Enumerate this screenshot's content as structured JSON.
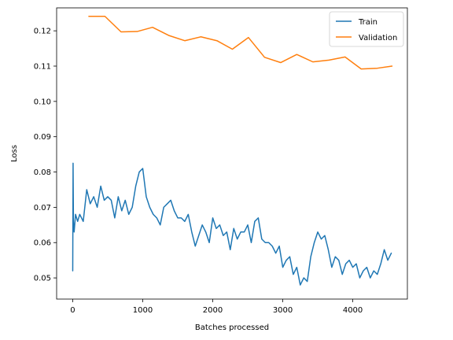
{
  "chart_data": {
    "type": "line",
    "title": "",
    "xlabel": "Batches processed",
    "ylabel": "Loss",
    "xlim": [
      -230,
      4780
    ],
    "ylim": [
      0.044,
      0.1265
    ],
    "xticks": [
      0,
      1000,
      2000,
      3000,
      4000
    ],
    "yticks": [
      0.05,
      0.06,
      0.07,
      0.08,
      0.09,
      0.1,
      0.11,
      0.12
    ],
    "ytick_labels": [
      "0.05",
      "0.06",
      "0.07",
      "0.08",
      "0.09",
      "0.10",
      "0.11",
      "0.12"
    ],
    "grid": false,
    "legend": {
      "placement": "top-right"
    },
    "series": [
      {
        "name": "Train",
        "color": "#1f77b4",
        "x": [
          0,
          5,
          10,
          20,
          40,
          70,
          100,
          150,
          200,
          250,
          300,
          350,
          400,
          450,
          500,
          550,
          600,
          650,
          700,
          750,
          800,
          850,
          900,
          950,
          1000,
          1050,
          1100,
          1150,
          1200,
          1250,
          1300,
          1350,
          1400,
          1450,
          1500,
          1550,
          1600,
          1650,
          1700,
          1750,
          1800,
          1850,
          1900,
          1950,
          2000,
          2050,
          2100,
          2150,
          2200,
          2250,
          2300,
          2350,
          2400,
          2450,
          2500,
          2550,
          2600,
          2650,
          2700,
          2750,
          2800,
          2850,
          2900,
          2950,
          3000,
          3050,
          3100,
          3150,
          3200,
          3250,
          3300,
          3350,
          3400,
          3450,
          3500,
          3550,
          3600,
          3650,
          3700,
          3750,
          3800,
          3850,
          3900,
          3950,
          4000,
          4050,
          4100,
          4150,
          4200,
          4250,
          4300,
          4350,
          4400,
          4450,
          4500,
          4550
        ],
        "values": [
          0.052,
          0.0825,
          0.066,
          0.063,
          0.068,
          0.066,
          0.068,
          0.066,
          0.075,
          0.071,
          0.073,
          0.07,
          0.076,
          0.072,
          0.073,
          0.072,
          0.067,
          0.073,
          0.069,
          0.072,
          0.068,
          0.07,
          0.076,
          0.08,
          0.081,
          0.073,
          0.07,
          0.068,
          0.067,
          0.065,
          0.07,
          0.071,
          0.072,
          0.069,
          0.067,
          0.067,
          0.066,
          0.068,
          0.063,
          0.059,
          0.062,
          0.065,
          0.063,
          0.06,
          0.067,
          0.064,
          0.065,
          0.062,
          0.063,
          0.058,
          0.064,
          0.061,
          0.063,
          0.063,
          0.065,
          0.06,
          0.066,
          0.067,
          0.061,
          0.06,
          0.06,
          0.059,
          0.057,
          0.059,
          0.053,
          0.055,
          0.056,
          0.051,
          0.053,
          0.048,
          0.05,
          0.049,
          0.056,
          0.06,
          0.063,
          0.061,
          0.062,
          0.058,
          0.053,
          0.056,
          0.055,
          0.051,
          0.054,
          0.055,
          0.053,
          0.054,
          0.05,
          0.052,
          0.053,
          0.05,
          0.052,
          0.051,
          0.054,
          0.058,
          0.055,
          0.057
        ]
      },
      {
        "name": "Validation",
        "color": "#ff7f0e",
        "x": [
          230,
          460,
          690,
          920,
          1140,
          1370,
          1600,
          1830,
          2060,
          2280,
          2510,
          2740,
          2970,
          3200,
          3430,
          3660,
          3890,
          4120,
          4350,
          4560
        ],
        "values": [
          0.1241,
          0.1241,
          0.1197,
          0.1198,
          0.121,
          0.1187,
          0.1172,
          0.1183,
          0.1172,
          0.1148,
          0.1181,
          0.1125,
          0.111,
          0.1133,
          0.1112,
          0.1117,
          0.1126,
          0.1092,
          0.1094,
          0.11
        ]
      }
    ]
  }
}
